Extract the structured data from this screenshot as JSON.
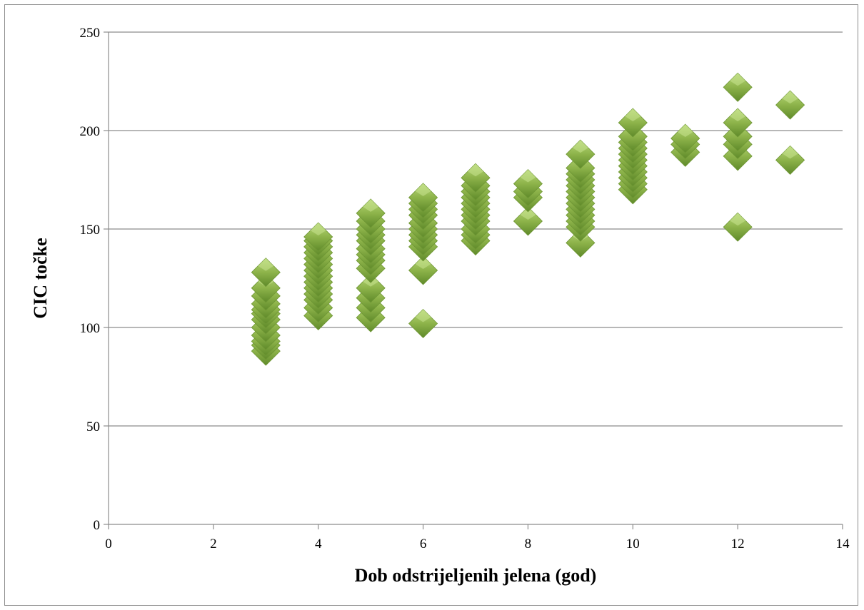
{
  "chart_data": {
    "type": "scatter",
    "title": "",
    "xlabel": "Dob odstrijeljenih jelena (god)",
    "ylabel": "CIC točke",
    "xlim": [
      0,
      14
    ],
    "ylim": [
      0,
      250
    ],
    "xticks": [
      0,
      2,
      4,
      6,
      8,
      10,
      12,
      14
    ],
    "yticks": [
      0,
      50,
      100,
      150,
      200,
      250
    ],
    "grid": "horizontal",
    "legend": "none",
    "marker": "diamond",
    "marker_color": "#8db34a",
    "series": [
      {
        "points": [
          [
            3,
            88
          ],
          [
            3,
            91
          ],
          [
            3,
            93
          ],
          [
            3,
            96
          ],
          [
            3,
            100
          ],
          [
            3,
            104
          ],
          [
            3,
            107
          ],
          [
            3,
            109
          ],
          [
            3,
            112
          ],
          [
            3,
            116
          ],
          [
            3,
            120
          ],
          [
            3,
            128
          ],
          [
            4,
            106
          ],
          [
            4,
            110
          ],
          [
            4,
            114
          ],
          [
            4,
            117
          ],
          [
            4,
            120
          ],
          [
            4,
            123
          ],
          [
            4,
            126
          ],
          [
            4,
            129
          ],
          [
            4,
            132
          ],
          [
            4,
            135
          ],
          [
            4,
            138
          ],
          [
            4,
            141
          ],
          [
            4,
            144
          ],
          [
            4,
            146
          ],
          [
            5,
            105
          ],
          [
            5,
            110
          ],
          [
            5,
            115
          ],
          [
            5,
            120
          ],
          [
            5,
            130
          ],
          [
            5,
            134
          ],
          [
            5,
            137
          ],
          [
            5,
            140
          ],
          [
            5,
            144
          ],
          [
            5,
            147
          ],
          [
            5,
            150
          ],
          [
            5,
            154
          ],
          [
            5,
            158
          ],
          [
            6,
            102
          ],
          [
            6,
            129
          ],
          [
            6,
            141
          ],
          [
            6,
            144
          ],
          [
            6,
            147
          ],
          [
            6,
            150
          ],
          [
            6,
            153
          ],
          [
            6,
            157
          ],
          [
            6,
            160
          ],
          [
            6,
            163
          ],
          [
            6,
            166
          ],
          [
            7,
            144
          ],
          [
            7,
            147
          ],
          [
            7,
            150
          ],
          [
            7,
            154
          ],
          [
            7,
            157
          ],
          [
            7,
            160
          ],
          [
            7,
            163
          ],
          [
            7,
            166
          ],
          [
            7,
            169
          ],
          [
            7,
            172
          ],
          [
            7,
            176
          ],
          [
            8,
            154
          ],
          [
            8,
            166
          ],
          [
            8,
            169
          ],
          [
            8,
            173
          ],
          [
            9,
            143
          ],
          [
            9,
            151
          ],
          [
            9,
            154
          ],
          [
            9,
            157
          ],
          [
            9,
            160
          ],
          [
            9,
            163
          ],
          [
            9,
            166
          ],
          [
            9,
            169
          ],
          [
            9,
            172
          ],
          [
            9,
            175
          ],
          [
            9,
            178
          ],
          [
            9,
            181
          ],
          [
            9,
            188
          ],
          [
            10,
            170
          ],
          [
            10,
            173
          ],
          [
            10,
            176
          ],
          [
            10,
            179
          ],
          [
            10,
            182
          ],
          [
            10,
            185
          ],
          [
            10,
            188
          ],
          [
            10,
            191
          ],
          [
            10,
            194
          ],
          [
            10,
            197
          ],
          [
            10,
            204
          ],
          [
            11,
            189
          ],
          [
            11,
            193
          ],
          [
            11,
            196
          ],
          [
            12,
            151
          ],
          [
            12,
            187
          ],
          [
            12,
            193
          ],
          [
            12,
            197
          ],
          [
            12,
            204
          ],
          [
            12,
            222
          ],
          [
            13,
            185
          ],
          [
            13,
            213
          ]
        ]
      }
    ]
  }
}
